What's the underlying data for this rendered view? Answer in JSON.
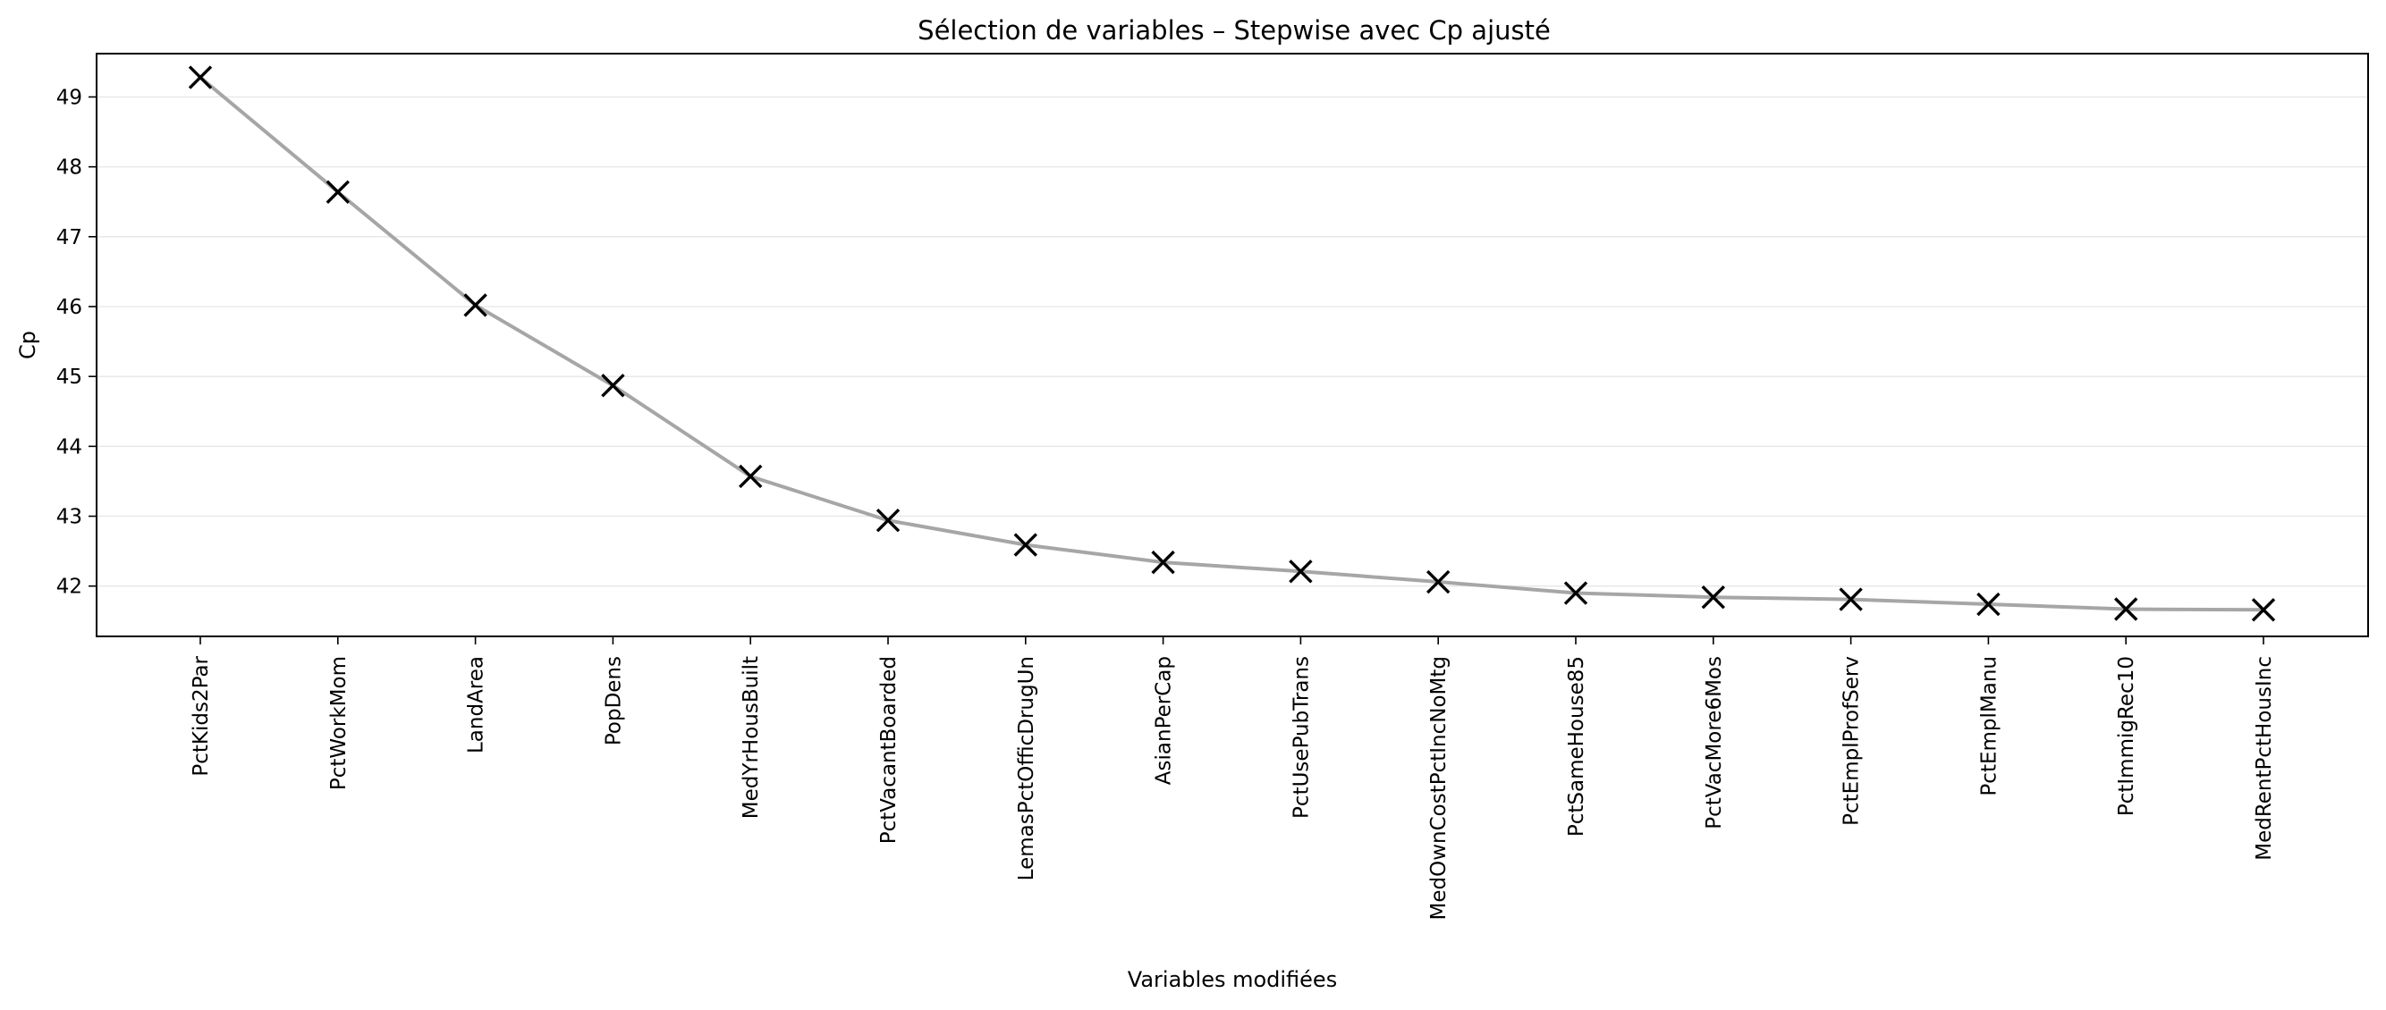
{
  "chart_data": {
    "type": "line",
    "title": "Sélection de variables – Stepwise avec Cp ajusté",
    "xlabel": "Variables modifiées",
    "ylabel": "Cp",
    "categories": [
      "PctKids2Par",
      "PctWorkMom",
      "LandArea",
      "PopDens",
      "MedYrHousBuilt",
      "PctVacantBoarded",
      "LemasPctOfficDrugUn",
      "AsianPerCap",
      "PctUsePubTrans",
      "MedOwnCostPctIncNoMtg",
      "PctSameHouse85",
      "PctVacMore6Mos",
      "PctEmplProfServ",
      "PctEmplManu",
      "PctImmigRec10",
      "MedRentPctHousInc"
    ],
    "series": [
      {
        "values": [
          49.28,
          47.64,
          46.02,
          44.87,
          43.57,
          42.94,
          42.59,
          42.34,
          42.21,
          42.06,
          41.9,
          41.84,
          41.81,
          41.74,
          41.67,
          41.66
        ]
      }
    ],
    "ylim": [
      41.28,
      49.62
    ],
    "yticks": [
      42,
      43,
      44,
      45,
      46,
      47,
      48,
      49
    ],
    "grid": "horizontal",
    "line_color": "#a6a6a6",
    "marker": "x",
    "marker_color": "#000000"
  }
}
